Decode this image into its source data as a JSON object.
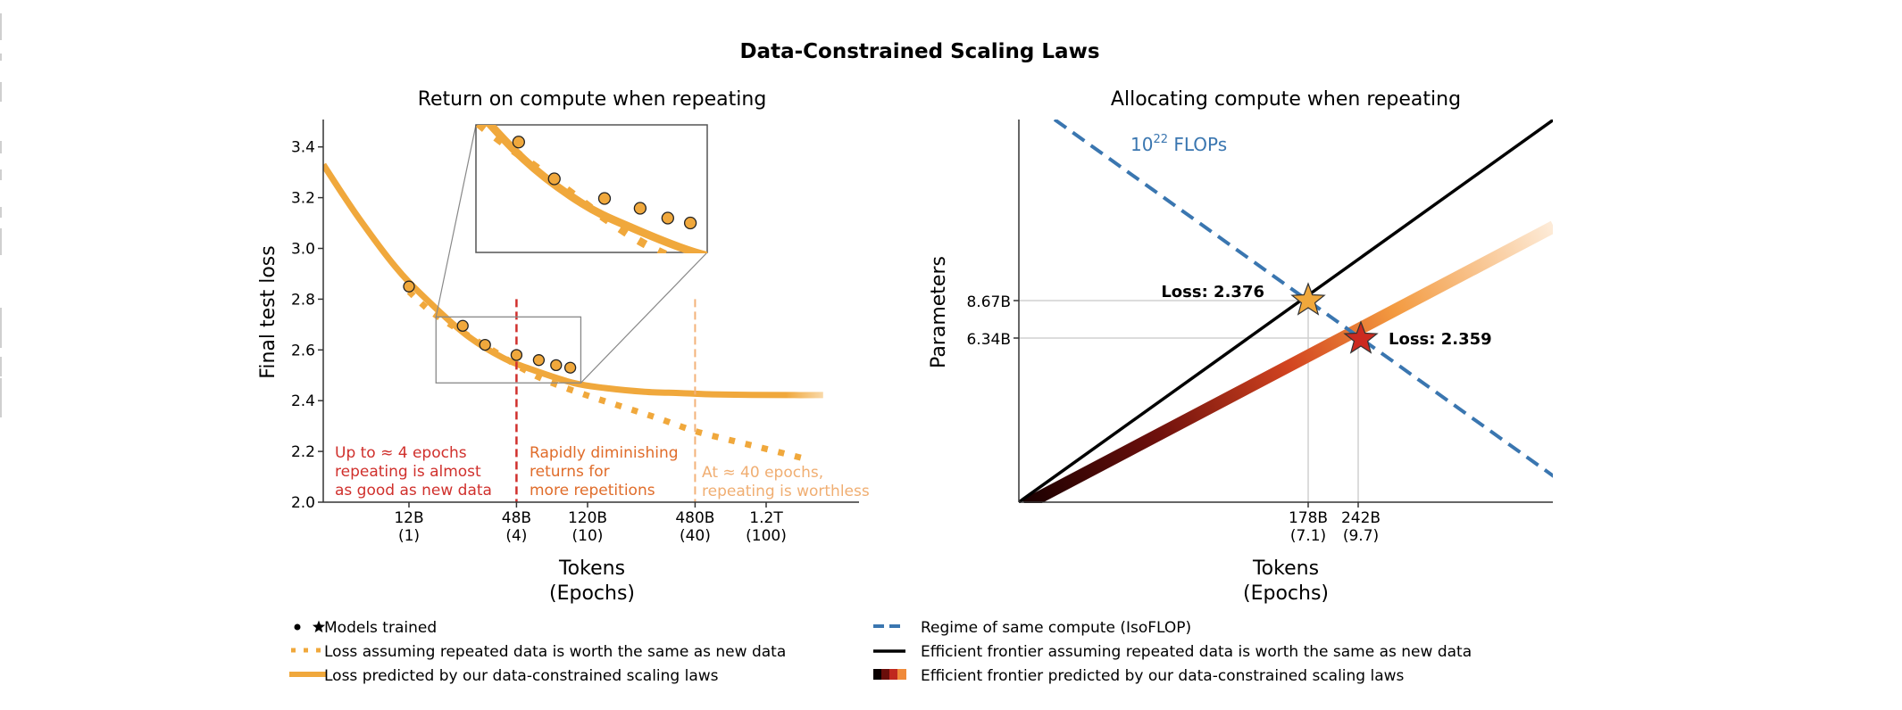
{
  "figure_title": "Data-Constrained Scaling Laws",
  "chart_data": [
    {
      "type": "line",
      "title": "Return on compute when repeating",
      "xlabel": "Tokens",
      "xlabel_sub": "(Epochs)",
      "ylabel": "Final test loss",
      "xscale": "log",
      "ylim": [
        2.0,
        3.5
      ],
      "yticks": [
        2.0,
        2.2,
        2.4,
        2.6,
        2.8,
        3.0,
        3.2,
        3.4
      ],
      "ytick_labels": [
        "2.0",
        "2.2",
        "2.4",
        "2.6",
        "2.8",
        "3.0",
        "3.2",
        "3.4"
      ],
      "xticks": [
        {
          "tokens": 12000000000.0,
          "label": "12B",
          "sub": "(1)"
        },
        {
          "tokens": 48000000000.0,
          "label": "48B",
          "sub": "(4)"
        },
        {
          "tokens": 120000000000.0,
          "label": "120B",
          "sub": "(10)"
        },
        {
          "tokens": 480000000000.0,
          "label": "480B",
          "sub": "(40)"
        },
        {
          "tokens": 1200000000000.0,
          "label": "1.2T",
          "sub": "(100)"
        }
      ],
      "series": [
        {
          "name": "Loss predicted by our data-constrained scaling laws",
          "style": "solid",
          "color": "#f0a83c",
          "x_tokens": [
            3980000000.0,
            6000000000.0,
            10000000000.0,
            15000000000.0,
            25000000000.0,
            40000000000.0,
            60000000000.0,
            100000000000.0,
            150000000000.0,
            250000000000.0,
            400000000000.0,
            600000000000.0,
            1000000000000.0,
            1600000000000.0,
            2500000000000.0
          ],
          "y": [
            3.33,
            3.14,
            2.93,
            2.8,
            2.66,
            2.57,
            2.52,
            2.47,
            2.45,
            2.435,
            2.43,
            2.425,
            2.423,
            2.422,
            2.422
          ]
        },
        {
          "name": "Loss assuming repeated data is worth the same as new data",
          "style": "dotted",
          "color": "#f0a83c",
          "x_tokens": [
            12000000000.0,
            16000000000.0,
            24000000000.0,
            35000000000.0,
            48000000000.0,
            70000000000.0,
            120000000000.0,
            200000000000.0,
            300000000000.0,
            480000000000.0,
            800000000000.0,
            1200000000000.0,
            2000000000000.0
          ],
          "y": [
            2.83,
            2.75,
            2.67,
            2.6,
            2.54,
            2.48,
            2.42,
            2.37,
            2.33,
            2.28,
            2.24,
            2.21,
            2.17
          ]
        }
      ],
      "points": {
        "name": "Models trained",
        "color": "#f0a83c",
        "x_tokens": [
          12000000000.0,
          24000000000.0,
          32000000000.0,
          48000000000.0,
          64000000000.0,
          80000000000.0,
          96000000000.0
        ],
        "y": [
          2.85,
          2.695,
          2.62,
          2.58,
          2.56,
          2.54,
          2.53
        ]
      },
      "vlines": [
        {
          "tokens": 48000000000.0,
          "color": "#d0302c",
          "ymax": 2.8
        },
        {
          "tokens": 480000000000.0,
          "color": "#f3b27a",
          "ymax": 2.8
        }
      ],
      "annotations": [
        {
          "lines": [
            "Up to ≈ 4 epochs",
            "repeating is almost",
            "as good as new data"
          ],
          "color": "#d0302c"
        },
        {
          "lines": [
            "Rapidly diminishing",
            "returns for",
            "more repetitions"
          ],
          "color": "#e06c2a"
        },
        {
          "lines": [
            "At ≈ 40 epochs,",
            "repeating is worthless"
          ],
          "color": "#f0ae72"
        }
      ],
      "inset": {
        "zoom_region_x_tokens": [
          17000000000.0,
          110000000000.0
        ],
        "zoom_region_y": [
          2.47,
          2.73
        ]
      }
    },
    {
      "type": "line",
      "title": "Allocating compute when repeating",
      "xlabel": "Tokens",
      "xlabel_sub": "(Epochs)",
      "ylabel": "Parameters",
      "xticks": [
        {
          "label": "178B",
          "sub": "(7.1)"
        },
        {
          "label": "242B",
          "sub": "(9.7)"
        }
      ],
      "yticks": [
        {
          "label": "8.67B"
        },
        {
          "label": "6.34B"
        }
      ],
      "isoflop_label": {
        "base": "10",
        "exp": "22",
        "suffix": " FLOPs",
        "color": "#3a76b0"
      },
      "stars": [
        {
          "label": "Loss: 2.376",
          "tokens": "178B",
          "params": "8.67B",
          "color": "#f0a83c"
        },
        {
          "label": "Loss: 2.359",
          "tokens": "242B",
          "params": "6.34B",
          "color": "#cc2a20"
        }
      ],
      "series": [
        {
          "name": "Regime of same compute (IsoFLOP)",
          "style": "dashed",
          "color": "#3a76b0"
        },
        {
          "name": "Efficient frontier assuming repeated data is worth the same as new data",
          "style": "solid",
          "color": "#000000"
        },
        {
          "name": "Efficient frontier predicted by our data-constrained scaling laws",
          "style": "gradient",
          "colors": [
            "#1a0000",
            "#8a1410",
            "#e0501e",
            "#f39a40",
            "#fdebd8"
          ]
        }
      ]
    }
  ],
  "legend": [
    {
      "marker": "dot-star",
      "label": "Models trained"
    },
    {
      "marker": "dotted-orange",
      "label": "Loss assuming repeated data is worth the same as new data"
    },
    {
      "marker": "solid-orange",
      "label": "Loss predicted by our data-constrained scaling laws"
    },
    {
      "marker": "dashed-blue",
      "label": "Regime of same compute (IsoFLOP)"
    },
    {
      "marker": "solid-black",
      "label": "Efficient frontier assuming repeated data is worth the same as new data"
    },
    {
      "marker": "gradient",
      "label": "Efficient frontier predicted by our data-constrained scaling laws"
    }
  ]
}
